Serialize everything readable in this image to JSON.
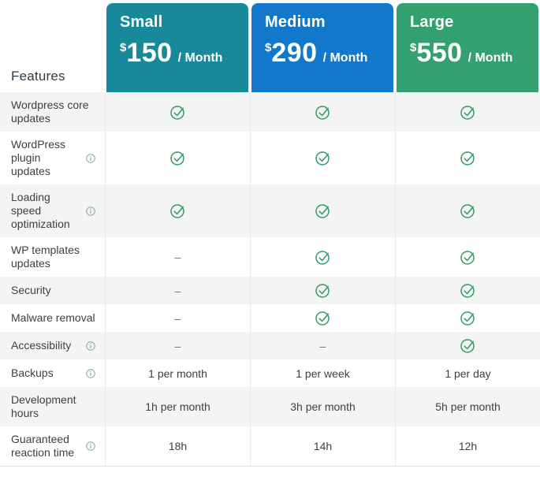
{
  "table": {
    "features_header": "Features",
    "plans": [
      {
        "name": "Small",
        "currency": "$",
        "price": "150",
        "per": "/ Month",
        "color": "#17899B"
      },
      {
        "name": "Medium",
        "currency": "$",
        "price": "290",
        "per": "/ Month",
        "color": "#1178CB"
      },
      {
        "name": "Large",
        "currency": "$",
        "price": "550",
        "per": "/ Month",
        "color": "#33A070"
      }
    ],
    "rows": [
      {
        "feature": "Wordpress core updates",
        "info": false,
        "values": [
          "check",
          "check",
          "check"
        ]
      },
      {
        "feature": "WordPress plugin updates",
        "info": true,
        "values": [
          "check",
          "check",
          "check"
        ]
      },
      {
        "feature": "Loading speed optimization",
        "info": true,
        "values": [
          "check",
          "check",
          "check"
        ]
      },
      {
        "feature": "WP templates updates",
        "info": false,
        "values": [
          "dash",
          "check",
          "check"
        ]
      },
      {
        "feature": "Security",
        "info": false,
        "values": [
          "dash",
          "check",
          "check"
        ]
      },
      {
        "feature": "Malware removal",
        "info": false,
        "values": [
          "dash",
          "check",
          "check"
        ]
      },
      {
        "feature": "Accessibility",
        "info": true,
        "values": [
          "dash",
          "dash",
          "check"
        ]
      },
      {
        "feature": "Backups",
        "info": true,
        "values": [
          "1 per month",
          "1 per week",
          "1 per day"
        ]
      },
      {
        "feature": "Development hours",
        "info": false,
        "values": [
          "1h per month",
          "3h per month",
          "5h per month"
        ]
      },
      {
        "feature": "Guaranteed reaction time",
        "info": true,
        "values": [
          "18h",
          "14h",
          "12h"
        ]
      }
    ],
    "icons": {
      "check": "check-circle-icon",
      "dash_glyph": "–",
      "info": "info-circle-icon"
    },
    "colors": {
      "check_green": "#2E9D62",
      "info_teal": "#7BA9A4",
      "row_alt": "#F4F4F5",
      "plan_small": "#17899B",
      "plan_medium": "#1178CB",
      "plan_large": "#33A070"
    }
  }
}
